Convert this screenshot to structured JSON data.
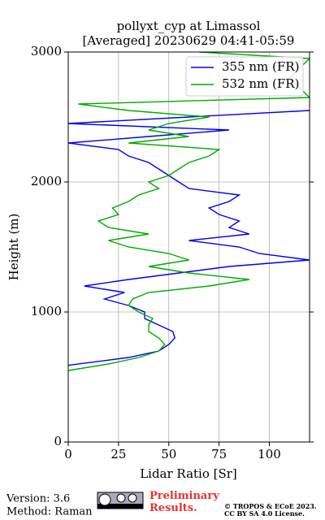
{
  "chart_data": {
    "type": "line",
    "title": [
      "pollyxt_cyp at Limassol",
      "[Averaged] 20230629 04:41-05:59"
    ],
    "xlabel": "Lidar Ratio [Sr]",
    "ylabel": "Height (m)",
    "xlim": [
      0,
      120
    ],
    "xticks": [
      0,
      25,
      50,
      75,
      100
    ],
    "ylim": [
      0,
      3000
    ],
    "yticks": [
      0,
      1000,
      2000,
      3000
    ],
    "grid": true,
    "legend": "upper right",
    "series": [
      {
        "name": "355 nm (FR)",
        "color": "#0000ee",
        "y": [
          590,
          650,
          700,
          750,
          800,
          850,
          900,
          950,
          1000,
          1050,
          1100,
          1150,
          1200,
          1250,
          1300,
          1350,
          1400,
          1450,
          1500,
          1550,
          1600,
          1650,
          1700,
          1750,
          1800,
          1850,
          1900,
          1950,
          2000,
          2050,
          2100,
          2150,
          2200,
          2250,
          2300,
          2350,
          2400,
          2450,
          2500,
          2550
        ],
        "values": [
          0,
          30,
          45,
          50,
          53,
          52,
          45,
          38,
          38,
          30,
          18,
          28,
          8,
          30,
          55,
          80,
          120,
          95,
          85,
          60,
          90,
          80,
          85,
          75,
          70,
          80,
          85,
          60,
          55,
          50,
          45,
          40,
          30,
          25,
          0,
          40,
          80,
          0,
          60,
          120
        ]
      },
      {
        "name": "532 nm (FR)",
        "color": "#00aa00",
        "y": [
          550,
          600,
          650,
          700,
          750,
          800,
          850,
          900,
          950,
          1000,
          1050,
          1100,
          1150,
          1200,
          1250,
          1300,
          1350,
          1400,
          1450,
          1500,
          1550,
          1600,
          1650,
          1700,
          1750,
          1800,
          1850,
          1900,
          1950,
          2000,
          2050,
          2100,
          2150,
          2200,
          2250,
          2300,
          2350,
          2400,
          2450,
          2500,
          2550,
          2600,
          2650,
          2800,
          2950,
          3000
        ],
        "values": [
          0,
          20,
          35,
          45,
          48,
          45,
          40,
          40,
          42,
          35,
          30,
          32,
          40,
          70,
          90,
          60,
          40,
          60,
          50,
          30,
          20,
          40,
          20,
          15,
          25,
          22,
          30,
          35,
          45,
          40,
          50,
          55,
          60,
          70,
          75,
          30,
          60,
          40,
          50,
          70,
          30,
          5,
          120,
          110,
          120,
          65
        ]
      }
    ]
  },
  "footer": {
    "version": "Version: 3.6",
    "method": "Method: Raman",
    "status": "Preliminary Results.",
    "copyright": "© TROPOS & ECoE 2023.",
    "license": "CC BY SA 4.0 License."
  }
}
